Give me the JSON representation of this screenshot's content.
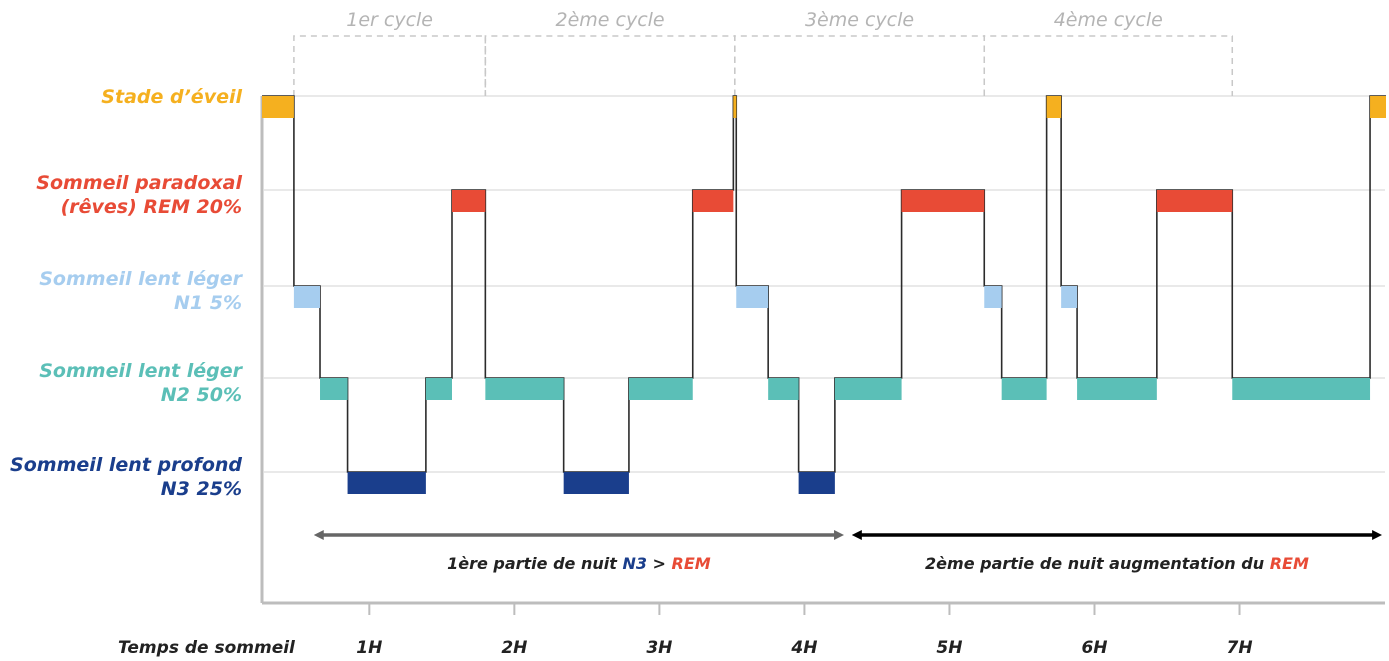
{
  "chart_data": {
    "type": "hypnogram",
    "xlabel": "Temps de sommeil",
    "x_unit": "hours",
    "xlim": [
      0,
      7.75
    ],
    "x_ticks": [
      {
        "x": 0.74,
        "label": "1H"
      },
      {
        "x": 1.74,
        "label": "2H"
      },
      {
        "x": 2.74,
        "label": "3H"
      },
      {
        "x": 3.74,
        "label": "4H"
      },
      {
        "x": 4.74,
        "label": "5H"
      },
      {
        "x": 5.74,
        "label": "6H"
      },
      {
        "x": 6.74,
        "label": "7H"
      }
    ],
    "stages": [
      {
        "key": "wake",
        "line1": "Stade d’éveil",
        "line2": "",
        "color": "#f5b01f"
      },
      {
        "key": "rem",
        "line1": "Sommeil paradoxal",
        "line2": "(rêves) REM 20%",
        "color": "#e84b36"
      },
      {
        "key": "n1",
        "line1": "Sommeil lent léger",
        "line2": "N1 5%",
        "color": "#a6cdef"
      },
      {
        "key": "n2",
        "line1": "Sommeil lent léger",
        "line2": "N2 50%",
        "color": "#5bbfb7"
      },
      {
        "key": "n3",
        "line1": "Sommeil lent profond",
        "line2": "N3 25%",
        "color": "#1a3e8c"
      }
    ],
    "cycles": [
      {
        "label": "1er cycle",
        "start": 0.22,
        "end": 1.54
      },
      {
        "label": "2ème cycle",
        "start": 1.54,
        "end": 3.26
      },
      {
        "label": "3ème cycle",
        "start": 3.26,
        "end": 4.98
      },
      {
        "label": "4ème cycle",
        "start": 4.98,
        "end": 6.69
      }
    ],
    "segments": [
      {
        "stage": "wake",
        "start": 0.0,
        "end": 0.22
      },
      {
        "stage": "n1",
        "start": 0.22,
        "end": 0.4
      },
      {
        "stage": "n2",
        "start": 0.4,
        "end": 0.59
      },
      {
        "stage": "n3",
        "start": 0.59,
        "end": 1.13
      },
      {
        "stage": "n2",
        "start": 1.13,
        "end": 1.31
      },
      {
        "stage": "rem",
        "start": 1.31,
        "end": 1.54
      },
      {
        "stage": "n2",
        "start": 1.54,
        "end": 2.08
      },
      {
        "stage": "n3",
        "start": 2.08,
        "end": 2.53
      },
      {
        "stage": "n2",
        "start": 2.53,
        "end": 2.97
      },
      {
        "stage": "rem",
        "start": 2.97,
        "end": 3.25
      },
      {
        "stage": "wake",
        "start": 3.25,
        "end": 3.27
      },
      {
        "stage": "n1",
        "start": 3.27,
        "end": 3.49
      },
      {
        "stage": "n2",
        "start": 3.49,
        "end": 3.7
      },
      {
        "stage": "n3",
        "start": 3.7,
        "end": 3.95
      },
      {
        "stage": "n2",
        "start": 3.95,
        "end": 4.41
      },
      {
        "stage": "rem",
        "start": 4.41,
        "end": 4.98
      },
      {
        "stage": "n1",
        "start": 4.98,
        "end": 5.1
      },
      {
        "stage": "n2",
        "start": 5.1,
        "end": 5.41
      },
      {
        "stage": "wake",
        "start": 5.41,
        "end": 5.51
      },
      {
        "stage": "n1",
        "start": 5.51,
        "end": 5.62
      },
      {
        "stage": "n2",
        "start": 5.62,
        "end": 6.17
      },
      {
        "stage": "rem",
        "start": 6.17,
        "end": 6.69
      },
      {
        "stage": "n2",
        "start": 6.69,
        "end": 7.64
      },
      {
        "stage": "wake",
        "start": 7.64,
        "end": 7.75
      }
    ],
    "annotations": [
      {
        "prefix": "1ère partie de nuit ",
        "highlight1": "N3",
        "middle": " > ",
        "highlight2": "REM",
        "suffix": "",
        "start": 0.35,
        "end": 4.02,
        "color": "#666666",
        "h1_color": "#1a3e8c",
        "h2_color": "#e84b36"
      },
      {
        "prefix": "2ème partie de nuit augmentation du ",
        "highlight1": "REM",
        "middle": "",
        "highlight2": "",
        "suffix": "",
        "start": 4.06,
        "end": 7.73,
        "color": "#000000",
        "h1_color": "#e84b36",
        "h2_color": "#e84b36"
      }
    ]
  }
}
